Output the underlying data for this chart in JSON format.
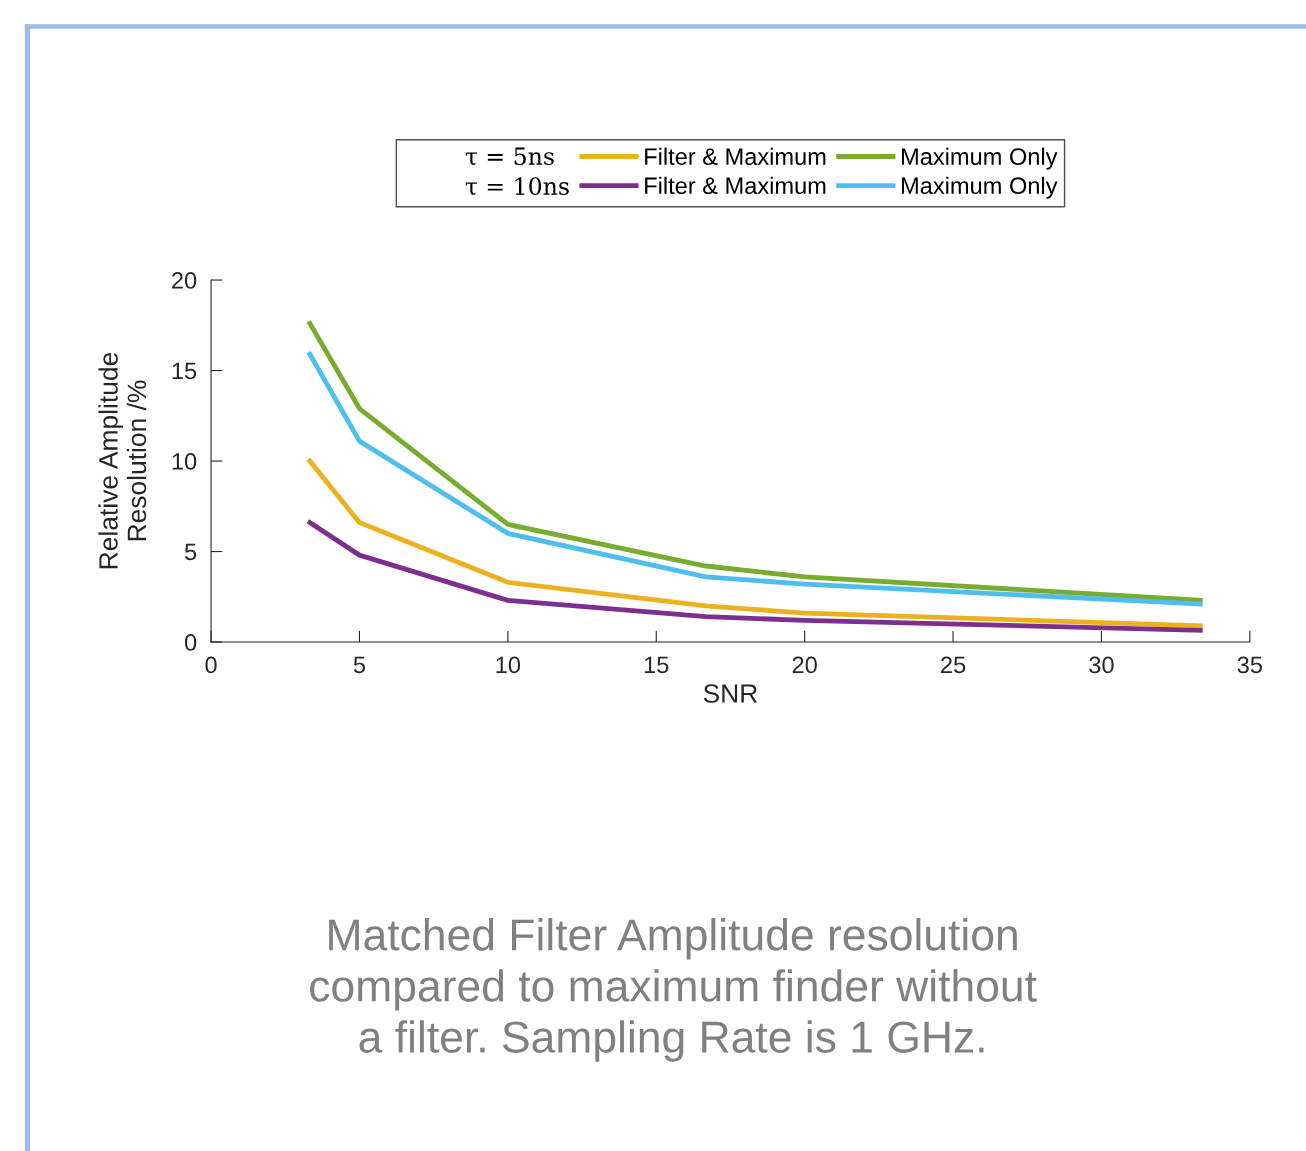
{
  "chart_data": {
    "type": "line",
    "xlabel": "SNR",
    "ylabel": "Relative Amplitude\nResolution /%",
    "x": [
      3.33,
      5,
      10,
      16.67,
      20,
      33.33
    ],
    "series": [
      {
        "name": "Filter & Maximum",
        "color": "#edb120",
        "values": [
          10.0,
          6.6,
          3.3,
          2.0,
          1.6,
          0.9
        ]
      },
      {
        "name": "Filter & Maximum",
        "color": "#7e2f8e",
        "values": [
          6.6,
          4.8,
          2.3,
          1.4,
          1.2,
          0.65
        ]
      },
      {
        "name": "Maximum Only",
        "color": "#77ac30",
        "values": [
          17.6,
          12.9,
          6.5,
          4.2,
          3.6,
          2.3
        ]
      },
      {
        "name": "Maximum Only",
        "color": "#4dbeee",
        "values": [
          15.9,
          11.1,
          6.0,
          3.6,
          3.2,
          2.1
        ]
      }
    ],
    "xlim": [
      0,
      35
    ],
    "xticks": [
      0,
      5,
      10,
      15,
      20,
      25,
      30,
      35
    ],
    "ylim": [
      0,
      20
    ],
    "yticks": [
      0,
      5,
      10,
      15,
      20
    ],
    "grid": false,
    "legend": "top",
    "marker": "none",
    "line_style": "solid",
    "annotations": [
      "τ = 5ns",
      "τ = 10ns",
      "Matched Filter Amplitude resolution\ncompared to maximum finder without\na filter. Sampling Rate is 1 GHz."
    ]
  }
}
